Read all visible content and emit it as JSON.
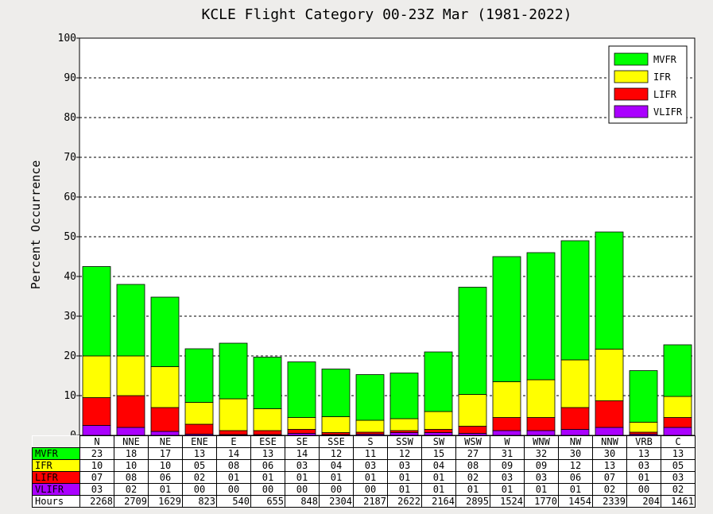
{
  "chart_data": {
    "type": "bar",
    "stacked": true,
    "title": "KCLE Flight Category 00-23Z Mar (1981-2022)",
    "ylabel": "Percent Occurrence",
    "ylim": [
      0,
      100
    ],
    "yticks": [
      "0",
      "10",
      "20",
      "30",
      "40",
      "50",
      "60",
      "70",
      "80",
      "90",
      "100"
    ],
    "grid": "dashed horizontal",
    "legend_position": "top-right",
    "categories": [
      "N",
      "NNE",
      "NE",
      "ENE",
      "E",
      "ESE",
      "SE",
      "SSE",
      "S",
      "SSW",
      "SW",
      "WSW",
      "W",
      "WNW",
      "NW",
      "NNW",
      "VRB",
      "C"
    ],
    "series": [
      {
        "name": "MVFR",
        "color": "#00ff00",
        "values": [
          22.5,
          18,
          17.5,
          13.5,
          14,
          13,
          14,
          12,
          11.5,
          11.5,
          15,
          27,
          31.5,
          32,
          30,
          29.5,
          13,
          13
        ]
      },
      {
        "name": "IFR",
        "color": "#ffff00",
        "values": [
          10.5,
          10,
          10.3,
          5.5,
          8,
          5.5,
          3,
          4,
          3,
          3,
          4.5,
          8,
          9,
          9.5,
          12,
          13,
          2.5,
          5.3
        ]
      },
      {
        "name": "LIFR",
        "color": "#ff0000",
        "values": [
          7,
          8,
          6,
          2.5,
          1,
          1,
          1,
          0.5,
          0.5,
          0.5,
          0.8,
          1.8,
          3.3,
          3.3,
          5.5,
          6.7,
          0.5,
          2.5
        ]
      },
      {
        "name": "VLIFR",
        "color": "#aa00ff",
        "values": [
          2.5,
          2,
          1,
          0.3,
          0.2,
          0.2,
          0.5,
          0.2,
          0.3,
          0.7,
          0.7,
          0.5,
          1.2,
          1.2,
          1.5,
          2,
          0.3,
          2
        ]
      }
    ]
  },
  "table": {
    "rows": [
      {
        "label": "MVFR",
        "color": "#00ff00",
        "values": [
          "23",
          "18",
          "17",
          "13",
          "14",
          "13",
          "14",
          "12",
          "11",
          "12",
          "15",
          "27",
          "31",
          "32",
          "30",
          "30",
          "13",
          "13"
        ]
      },
      {
        "label": "IFR",
        "color": "#ffff00",
        "values": [
          "10",
          "10",
          "10",
          "05",
          "08",
          "06",
          "03",
          "04",
          "03",
          "03",
          "04",
          "08",
          "09",
          "09",
          "12",
          "13",
          "03",
          "05"
        ]
      },
      {
        "label": "LIFR",
        "color": "#ff0000",
        "values": [
          "07",
          "08",
          "06",
          "02",
          "01",
          "01",
          "01",
          "01",
          "01",
          "01",
          "01",
          "02",
          "03",
          "03",
          "06",
          "07",
          "01",
          "03"
        ]
      },
      {
        "label": "VLIFR",
        "color": "#aa00ff",
        "values": [
          "03",
          "02",
          "01",
          "00",
          "00",
          "00",
          "00",
          "00",
          "00",
          "01",
          "01",
          "01",
          "01",
          "01",
          "01",
          "02",
          "00",
          "02"
        ]
      },
      {
        "label": "Hours",
        "color": "#ffffff",
        "values": [
          "2268",
          "2709",
          "1629",
          "823",
          "540",
          "655",
          "848",
          "2304",
          "2187",
          "2622",
          "2164",
          "2895",
          "1524",
          "1770",
          "1454",
          "2339",
          "204",
          "1461"
        ]
      }
    ]
  }
}
